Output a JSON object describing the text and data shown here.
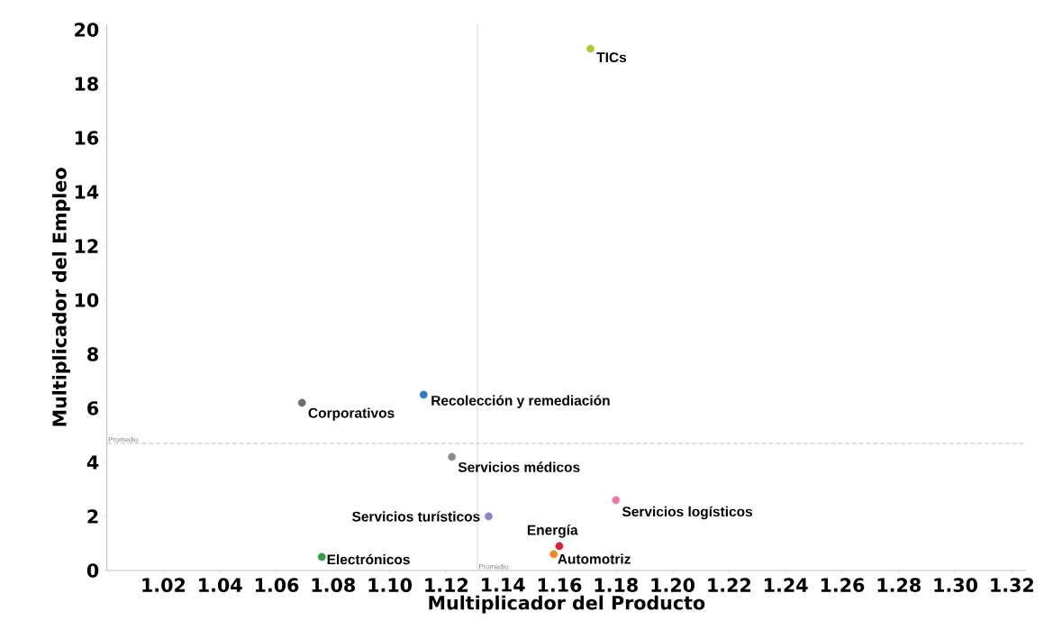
{
  "chart_data": {
    "type": "scatter",
    "xlabel": "Multiplicador del Producto",
    "ylabel": "Multiplicador del Empleo",
    "xlim": [
      1.0,
      1.325
    ],
    "ylim": [
      0,
      20.2
    ],
    "xticks": [
      1.02,
      1.04,
      1.06,
      1.08,
      {
        "value": 1.1,
        "label": "1.10"
      },
      1.12,
      1.14,
      1.16,
      1.18,
      {
        "value": 1.2,
        "label": "1.20"
      },
      1.22,
      1.24,
      1.26,
      1.28,
      {
        "value": 1.3,
        "label": "1.30"
      },
      1.32
    ],
    "yticks": [
      0,
      2,
      4,
      6,
      8,
      10,
      12,
      14,
      16,
      18,
      20
    ],
    "grid": false,
    "legend": false,
    "ref_lines": [
      {
        "axis": "y",
        "value": 4.7,
        "label": "Promedio",
        "color": "#b0b0b0",
        "line_style": "dashed"
      },
      {
        "axis": "x",
        "value": 1.131,
        "label": "Promedio",
        "color": "#c8c8c8",
        "line_style": "solid"
      }
    ],
    "series": [
      {
        "name": "TICs",
        "color": "#a6c93a",
        "x": [
          1.171
        ],
        "values": [
          19.3
        ]
      },
      {
        "name": "Corporativos",
        "color": "#6e6e6e",
        "x": [
          1.069
        ],
        "values": [
          6.2
        ]
      },
      {
        "name": "Recolección y remediación",
        "color": "#2e7cc4",
        "x": [
          1.112
        ],
        "values": [
          6.5
        ]
      },
      {
        "name": "Servicios médicos",
        "color": "#8a8a8a",
        "x": [
          1.122
        ],
        "values": [
          4.2
        ]
      },
      {
        "name": "Servicios turísticos",
        "color": "#8c86c8",
        "x": [
          1.135
        ],
        "values": [
          2.0
        ]
      },
      {
        "name": "Servicios logísticos",
        "color": "#e87ba0",
        "x": [
          1.18
        ],
        "values": [
          2.6
        ]
      },
      {
        "name": "Energía",
        "color": "#d62430",
        "x": [
          1.16
        ],
        "values": [
          0.9
        ]
      },
      {
        "name": "Automotriz",
        "color": "#f08a1e",
        "x": [
          1.158
        ],
        "values": [
          0.6
        ]
      },
      {
        "name": "Electrónicos",
        "color": "#3a9a48",
        "x": [
          1.076
        ],
        "values": [
          0.5
        ]
      }
    ]
  }
}
